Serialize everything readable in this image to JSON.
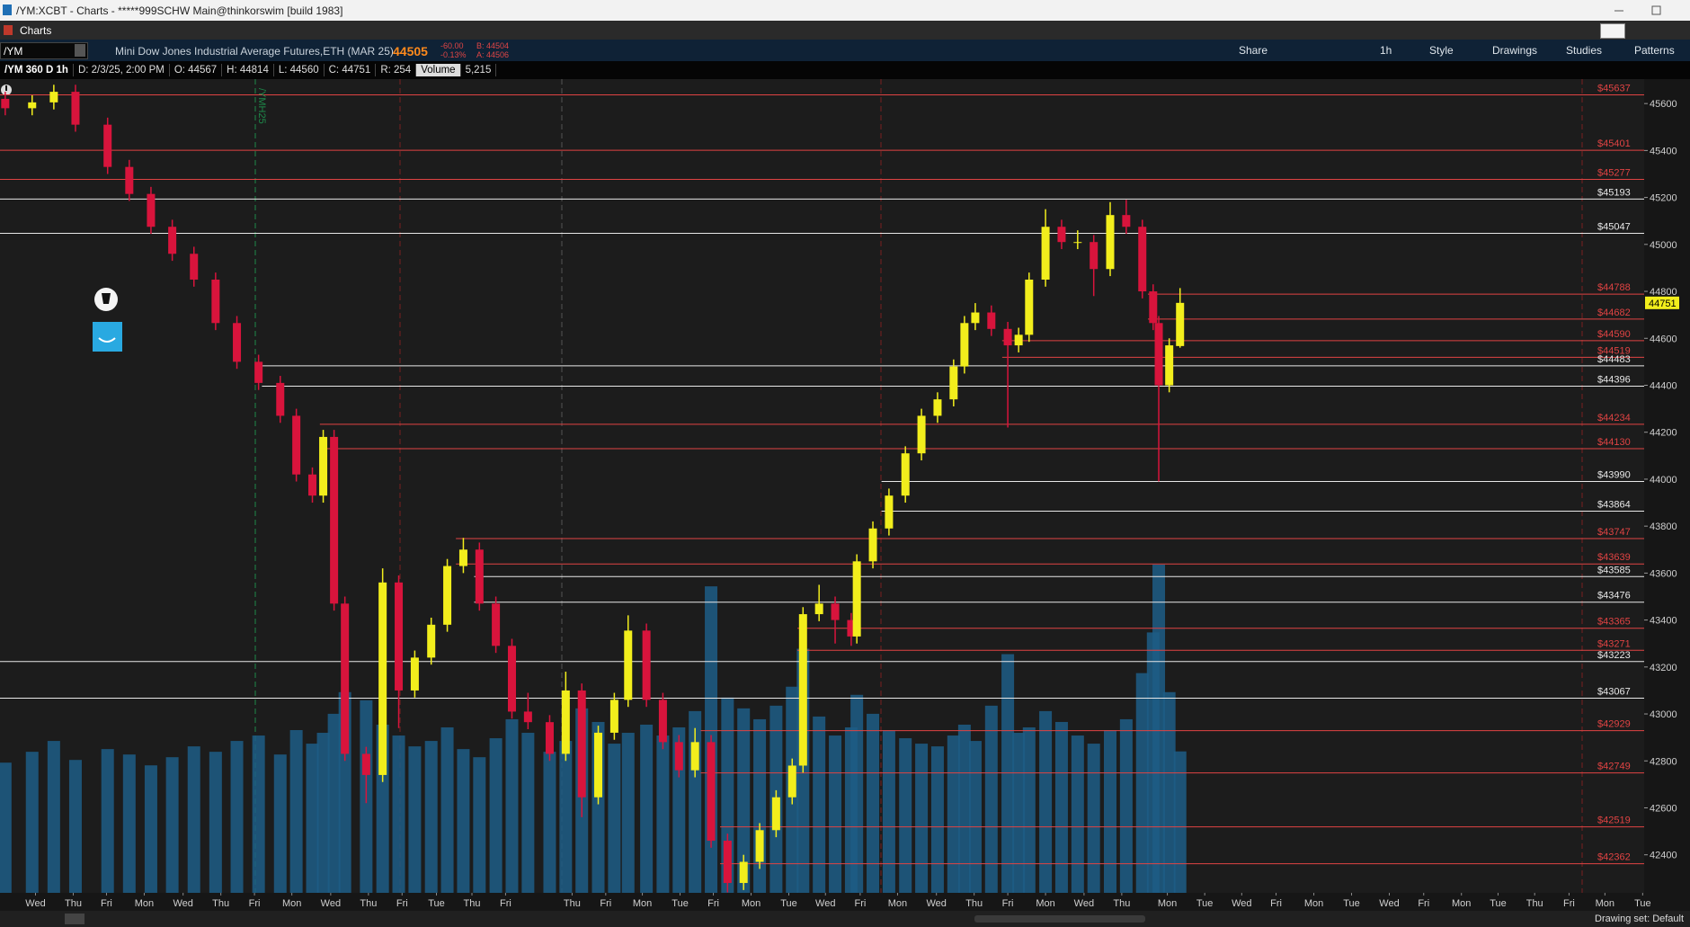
{
  "window": {
    "title": "/YM:XCBT - Charts - *****999SCHW Main@thinkorswim [build 1983]"
  },
  "tab": "Charts",
  "toolbar": {
    "symbol": "/YM",
    "description": "Mini Dow Jones Industrial Average Futures,ETH (MAR 25)",
    "last": "44505",
    "change": "-60.00",
    "change_pct": "-0.13%",
    "bid": "B: 44504",
    "ask": "A: 44506",
    "buttons": [
      "Share",
      "1h",
      "Style",
      "Drawings",
      "Studies",
      "Patterns"
    ]
  },
  "info": {
    "study": "/YM 360 D 1h",
    "date": "D: 2/3/25, 2:00 PM",
    "open": "O: 44567",
    "high": "H: 44814",
    "low": "L: 44560",
    "close": "C: 44751",
    "range": "R: 254",
    "volume_label": "Volume",
    "volume": "5,215"
  },
  "chart_data": {
    "type": "candlestick",
    "x": [
      -0.81,
      -0.09,
      0.49,
      1.07,
      1.93,
      2.51,
      3.09,
      3.66,
      4.24,
      4.82,
      5.39,
      5.97,
      6.55,
      6.98,
      7.41,
      7.7,
      7.99,
      8.28,
      8.85,
      9.29,
      9.72,
      10.15,
      10.59,
      11.02,
      11.45,
      11.88,
      12.32,
      12.75,
      13.18,
      13.76,
      14.19,
      14.62,
      15.06,
      15.49,
      15.86,
      16.35,
      16.79,
      17.22,
      17.65,
      18.08,
      18.52,
      18.95,
      19.38,
      19.82,
      20.25,
      20.54,
      20.97,
      21.4,
      21.83,
      21.98,
      22.41,
      22.84,
      23.28,
      23.71,
      24.14,
      24.57,
      24.86,
      25.15,
      25.58,
      26.02,
      26.31,
      26.59,
      27.03,
      27.46,
      27.89,
      28.32,
      28.76,
      29.19,
      29.62,
      29.91,
      30.06,
      30.34,
      30.63
    ],
    "open": [
      45620,
      45580,
      45605,
      45650,
      45510,
      45330,
      45215,
      45075,
      44960,
      44850,
      44665,
      44500,
      44410,
      44270,
      44020,
      43930,
      44180,
      43470,
      42830,
      42740,
      43560,
      43100,
      43240,
      43380,
      43630,
      43700,
      43470,
      43290,
      43010,
      42965,
      42830,
      43100,
      42645,
      42920,
      43060,
      43355,
      43060,
      42880,
      42760,
      42880,
      42460,
      42280,
      42370,
      42505,
      42645,
      42780,
      43425,
      43470,
      43400,
      43330,
      43650,
      43790,
      43930,
      44110,
      44270,
      44340,
      44480,
      44665,
      44710,
      44640,
      44570,
      44615,
      44850,
      45075,
      45010,
      45010,
      44895,
      45125,
      45075,
      44800,
      44665,
      44400,
      44567
    ],
    "high": [
      45650,
      45635,
      45680,
      45680,
      45540,
      45360,
      45245,
      45105,
      44990,
      44880,
      44695,
      44530,
      44440,
      44300,
      44050,
      44210,
      44210,
      43500,
      42860,
      43620,
      43590,
      43270,
      43410,
      43660,
      43750,
      43730,
      43500,
      43320,
      43090,
      42995,
      43180,
      43130,
      42950,
      43090,
      43420,
      43385,
      43090,
      42910,
      42940,
      42910,
      42490,
      42400,
      42535,
      42675,
      42810,
      43455,
      43550,
      43500,
      43430,
      43680,
      43820,
      43960,
      44140,
      44300,
      44370,
      44510,
      44695,
      44750,
      44740,
      44670,
      44645,
      44880,
      45150,
      45105,
      45060,
      45040,
      45180,
      45190,
      45105,
      44830,
      44695,
      44600,
      44814
    ],
    "low": [
      45550,
      45550,
      45575,
      45480,
      45300,
      45185,
      45045,
      44930,
      44820,
      44635,
      44470,
      44380,
      44240,
      43990,
      43900,
      43900,
      43440,
      42800,
      42620,
      42710,
      42940,
      43070,
      43210,
      43350,
      43600,
      43440,
      43260,
      42980,
      42935,
      42800,
      42800,
      42560,
      42615,
      42890,
      43030,
      43030,
      42850,
      42730,
      42730,
      42430,
      42240,
      42250,
      42340,
      42475,
      42615,
      42750,
      43395,
      43300,
      43290,
      43300,
      43620,
      43760,
      43900,
      44080,
      44240,
      44310,
      44450,
      44635,
      44610,
      44220,
      44540,
      44585,
      44820,
      44980,
      44980,
      44780,
      44865,
      45045,
      44770,
      44635,
      43990,
      44370,
      44560
    ],
    "close": [
      45580,
      45605,
      45650,
      45510,
      45330,
      45215,
      45075,
      44960,
      44850,
      44665,
      44500,
      44410,
      44270,
      44020,
      43930,
      44180,
      43470,
      42830,
      42740,
      43560,
      43100,
      43240,
      43380,
      43630,
      43700,
      43470,
      43290,
      43010,
      42965,
      42830,
      43100,
      42645,
      42920,
      43060,
      43355,
      43060,
      42880,
      42760,
      42880,
      42460,
      42280,
      42370,
      42505,
      42645,
      42780,
      43425,
      43470,
      43400,
      43330,
      43650,
      43790,
      43930,
      44110,
      44270,
      44340,
      44480,
      44665,
      44710,
      44640,
      44570,
      44615,
      44850,
      45075,
      45010,
      45010,
      44895,
      45125,
      45075,
      44800,
      44665,
      44400,
      44570,
      44751
    ],
    "volume": [
      4800,
      5200,
      5600,
      4900,
      5300,
      5100,
      4700,
      5000,
      5400,
      5200,
      5600,
      5800,
      5100,
      6000,
      5500,
      5900,
      6600,
      7400,
      7100,
      6200,
      5800,
      5400,
      5600,
      6100,
      5300,
      5000,
      5700,
      6400,
      5900,
      5200,
      5600,
      6800,
      6300,
      5500,
      5900,
      6200,
      5800,
      6100,
      6700,
      11300,
      7200,
      6800,
      6400,
      6900,
      7600,
      9000,
      6500,
      5800,
      6100,
      7300,
      6600,
      6000,
      5700,
      5500,
      5400,
      5800,
      6200,
      5600,
      6900,
      8800,
      5900,
      6100,
      6700,
      6300,
      5800,
      5500,
      6000,
      6400,
      8100,
      9600,
      12100,
      7400,
      5215
    ],
    "up_color": "#f2ee1c",
    "down_color": "#d8143c",
    "volume_color": "#1d5d86",
    "xlim": [
      -0.95,
      43.05
    ],
    "ylim": [
      42238,
      45704
    ],
    "volume_ylim": [
      0,
      30000
    ],
    "yticks": [
      42400,
      42600,
      42800,
      43000,
      43200,
      43400,
      43600,
      43800,
      44000,
      44200,
      44400,
      44600,
      44800,
      45000,
      45200,
      45400,
      45600
    ],
    "xticks": [
      {
        "value": 0,
        "label": "Wed"
      },
      {
        "value": 1.01,
        "label": "Thu"
      },
      {
        "value": 1.9,
        "label": "Fri"
      },
      {
        "value": 2.91,
        "label": "Mon"
      },
      {
        "value": 3.95,
        "label": "Wed"
      },
      {
        "value": 4.96,
        "label": "Thu"
      },
      {
        "value": 5.86,
        "label": "Fri"
      },
      {
        "value": 6.86,
        "label": "Mon"
      },
      {
        "value": 7.9,
        "label": "Wed"
      },
      {
        "value": 8.91,
        "label": "Thu"
      },
      {
        "value": 9.81,
        "label": "Fri"
      },
      {
        "value": 10.73,
        "label": "Tue"
      },
      {
        "value": 11.68,
        "label": "Thu"
      },
      {
        "value": 12.58,
        "label": "Fri"
      },
      {
        "value": 14.36,
        "label": "Thu"
      },
      {
        "value": 15.26,
        "label": "Fri"
      },
      {
        "value": 16.24,
        "label": "Mon"
      },
      {
        "value": 17.25,
        "label": "Tue"
      },
      {
        "value": 18.14,
        "label": "Fri"
      },
      {
        "value": 19.15,
        "label": "Mon"
      },
      {
        "value": 20.16,
        "label": "Tue"
      },
      {
        "value": 21.14,
        "label": "Wed"
      },
      {
        "value": 22.07,
        "label": "Fri"
      },
      {
        "value": 23.07,
        "label": "Mon"
      },
      {
        "value": 24.11,
        "label": "Wed"
      },
      {
        "value": 25.12,
        "label": "Thu"
      },
      {
        "value": 26.02,
        "label": "Fri"
      },
      {
        "value": 27.03,
        "label": "Mon"
      },
      {
        "value": 28.06,
        "label": "Wed"
      },
      {
        "value": 29.07,
        "label": "Thu"
      },
      {
        "value": 30.29,
        "label": "Mon"
      },
      {
        "value": 31.29,
        "label": "Tue"
      },
      {
        "value": 32.28,
        "label": "Wed"
      },
      {
        "value": 33.2,
        "label": "Fri"
      },
      {
        "value": 34.21,
        "label": "Mon"
      },
      {
        "value": 35.22,
        "label": "Tue"
      },
      {
        "value": 36.23,
        "label": "Wed"
      },
      {
        "value": 37.15,
        "label": "Fri"
      },
      {
        "value": 38.16,
        "label": "Mon"
      },
      {
        "value": 39.14,
        "label": "Tue"
      },
      {
        "value": 40.12,
        "label": "Thu"
      },
      {
        "value": 41.04,
        "label": "Fri"
      },
      {
        "value": 42,
        "label": "Mon"
      },
      {
        "value": 43.01,
        "label": "Tue"
      }
    ],
    "levels": [
      {
        "value": 45637,
        "label": "$45637",
        "color": "#e04343",
        "from": -0.95
      },
      {
        "value": 45401,
        "label": "$45401",
        "color": "#e04343",
        "from": -0.95
      },
      {
        "value": 45277,
        "label": "$45277",
        "color": "#e04343",
        "from": -0.95
      },
      {
        "value": 45193,
        "label": "$45193",
        "color": "#e8e8e8",
        "from": -0.95
      },
      {
        "value": 45047,
        "label": "$45047",
        "color": "#e8e8e8",
        "from": -0.95
      },
      {
        "value": 44788,
        "label": "$44788",
        "color": "#e04343",
        "from": 29.77
      },
      {
        "value": 44682,
        "label": "$44682",
        "color": "#e04343",
        "from": 29.77
      },
      {
        "value": 44590,
        "label": "$44590",
        "color": "#e04343",
        "from": 25.87
      },
      {
        "value": 44519,
        "label": "$44519",
        "color": "#e04343",
        "from": 25.87
      },
      {
        "value": 44483,
        "label": "$44483",
        "color": "#e8e8e8",
        "from": 6.06
      },
      {
        "value": 44396,
        "label": "$44396",
        "color": "#e8e8e8",
        "from": 6.06
      },
      {
        "value": 44234,
        "label": "$44234",
        "color": "#e04343",
        "from": 7.61
      },
      {
        "value": 44130,
        "label": "$44130",
        "color": "#e04343",
        "from": 7.61
      },
      {
        "value": 43990,
        "label": "$43990",
        "color": "#e8e8e8",
        "from": 22.64
      },
      {
        "value": 43864,
        "label": "$43864",
        "color": "#e8e8e8",
        "from": 22.64
      },
      {
        "value": 43747,
        "label": "$43747",
        "color": "#e04343",
        "from": 11.25
      },
      {
        "value": 43639,
        "label": "$43639",
        "color": "#e04343",
        "from": 11.25
      },
      {
        "value": 43585,
        "label": "$43585",
        "color": "#e8e8e8",
        "from": 11.74
      },
      {
        "value": 43476,
        "label": "$43476",
        "color": "#e8e8e8",
        "from": 11.74
      },
      {
        "value": 43365,
        "label": "$43365",
        "color": "#e04343",
        "from": 20.39
      },
      {
        "value": 43271,
        "label": "$43271",
        "color": "#e04343",
        "from": 20.39
      },
      {
        "value": 43223,
        "label": "$43223",
        "color": "#e8e8e8",
        "from": -0.95
      },
      {
        "value": 43067,
        "label": "$43067",
        "color": "#e8e8e8",
        "from": -0.95
      },
      {
        "value": 42929,
        "label": "$42929",
        "color": "#e04343",
        "from": 17.8
      },
      {
        "value": 42749,
        "label": "$42749",
        "color": "#e04343",
        "from": 17.8
      },
      {
        "value": 42519,
        "label": "$42519",
        "color": "#e04343",
        "from": 18.32
      },
      {
        "value": 42362,
        "label": "$42362",
        "color": "#e04343",
        "from": 18.32
      }
    ],
    "last_price": 44751,
    "annotation": "/YMH25"
  },
  "status": "Drawing set: Default"
}
